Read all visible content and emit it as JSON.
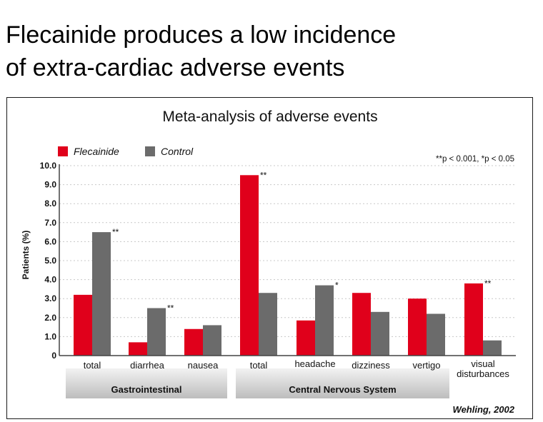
{
  "page": {
    "title_line1": "Flecainide produces a low incidence",
    "title_line2": "of extra-cardiac adverse events",
    "source": "Wehling, 2002"
  },
  "chart_data": {
    "type": "bar",
    "title": "Meta-analysis of adverse events",
    "ylabel": "Patients (%)",
    "xlabel": "",
    "ylim": [
      0,
      10
    ],
    "yticks": [
      "0",
      "1.0",
      "2.0",
      "3.0",
      "4.0",
      "5.0",
      "6.0",
      "7.0",
      "8.0",
      "9.0",
      "10.0"
    ],
    "grid": "horizontal dotted",
    "legend_position": "top-left",
    "significance_note": "**p < 0.001, *p < 0.05",
    "categories": [
      "total",
      "diarrhea",
      "nausea",
      "total",
      "headache",
      "dizziness",
      "vertigo",
      "visual disturbances"
    ],
    "series": [
      {
        "name": "Flecainide",
        "color": "#e0001b",
        "values": [
          3.2,
          0.7,
          1.4,
          9.5,
          1.85,
          3.3,
          3.0,
          3.8
        ]
      },
      {
        "name": "Control",
        "color": "#6b6b6b",
        "values": [
          6.5,
          2.5,
          1.6,
          3.3,
          3.7,
          2.3,
          2.2,
          0.8
        ]
      }
    ],
    "annotations": [
      {
        "category_index": 0,
        "series": "Control",
        "text": "**"
      },
      {
        "category_index": 1,
        "series": "Control",
        "text": "**"
      },
      {
        "category_index": 3,
        "series": "Flecainide",
        "text": "**"
      },
      {
        "category_index": 4,
        "series": "Control",
        "text": "*"
      },
      {
        "category_index": 7,
        "series": "Flecainide",
        "text": "**"
      }
    ],
    "groups": [
      {
        "label": "Gastrointestinal",
        "category_indices": [
          0,
          1,
          2
        ]
      },
      {
        "label": "Central Nervous System",
        "category_indices": [
          3,
          4,
          5,
          6,
          7
        ]
      }
    ]
  }
}
